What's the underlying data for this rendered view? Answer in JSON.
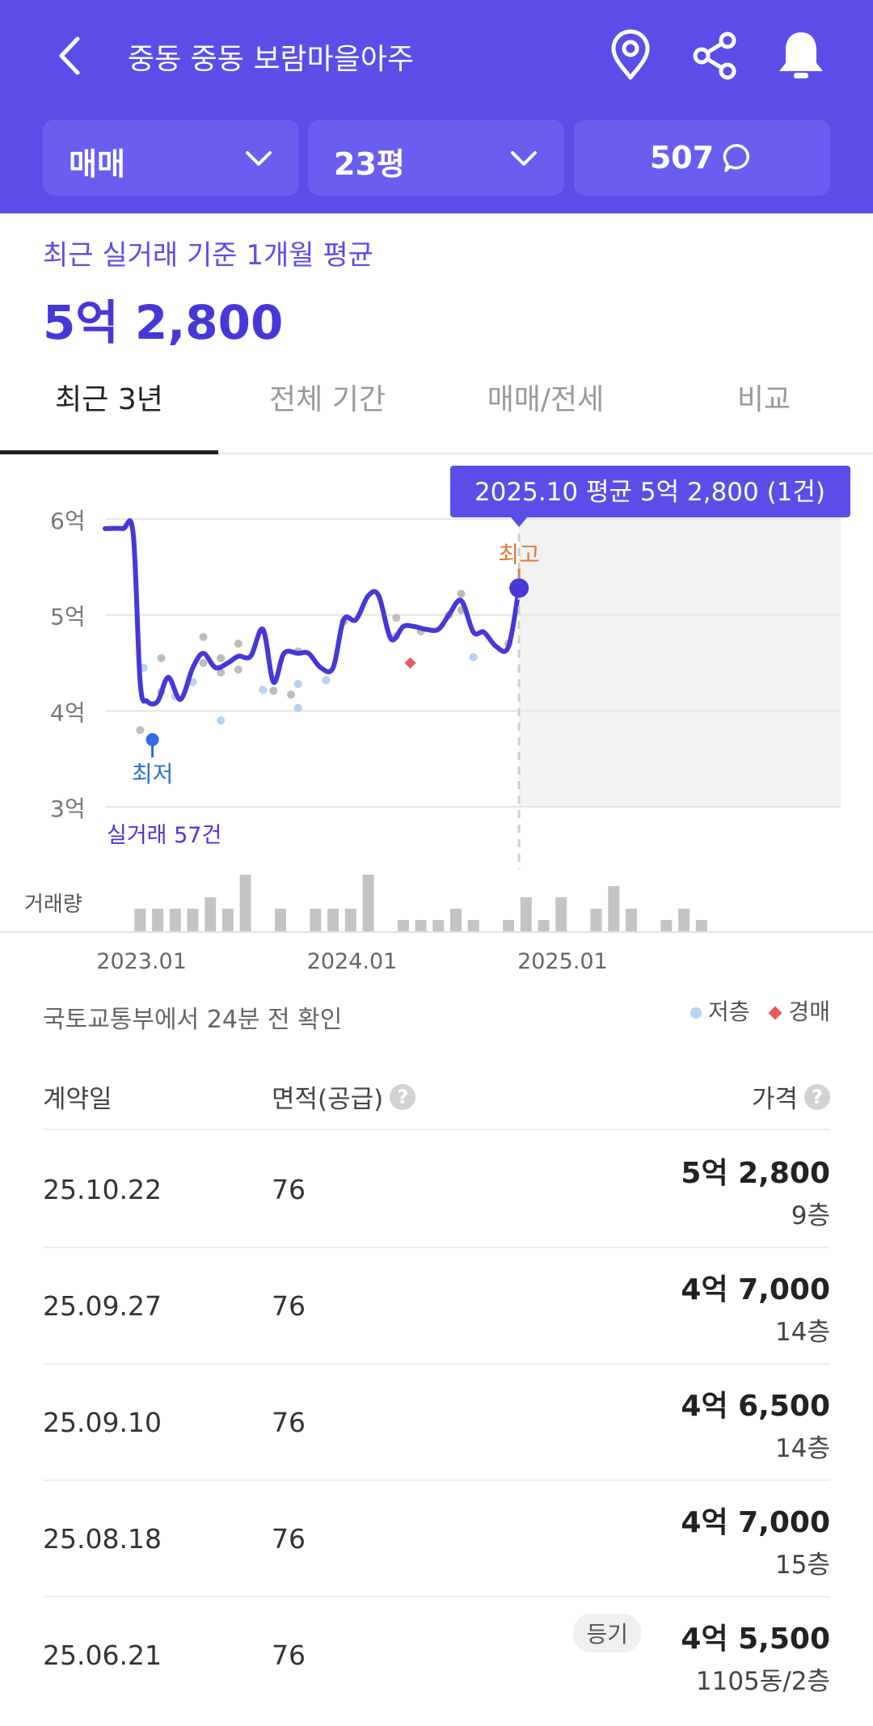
{
  "header": {
    "title": "중동 중동 보람마을아주",
    "back_icon": "chevron-left-icon",
    "icons": [
      "map-pin-icon",
      "share-icon",
      "bell-icon"
    ],
    "filters": {
      "type": "매매",
      "size": "23평",
      "count": "507"
    },
    "colors": {
      "header_bg": "#5b4ee8",
      "filter_bg": "#6a5ef0"
    }
  },
  "summary": {
    "subtitle": "최근 실거래 기준 1개월 평균",
    "price": "5억 2,800"
  },
  "tabs": [
    {
      "label": "최근 3년",
      "active": true
    },
    {
      "label": "전체 기간",
      "active": false
    },
    {
      "label": "매매/전세",
      "active": false
    },
    {
      "label": "비교",
      "active": false
    }
  ],
  "chart": {
    "tooltip": "2025.10 평균 5억 2,800 (1건)",
    "high_label": "최고",
    "low_label": "최저",
    "count_label": "실거래 57건",
    "volume_label": "거래량"
  },
  "chart_data": {
    "type": "line",
    "x_unit": "month",
    "xlim": [
      "2022.10",
      "2025.12"
    ],
    "ylim": [
      3,
      6
    ],
    "y_unit": "억",
    "y_ticks": [
      "3억",
      "4억",
      "5억",
      "6억"
    ],
    "x_ticks": [
      "2023.01",
      "2024.01",
      "2025.01"
    ],
    "grid": true,
    "series": [
      {
        "values": [
          [
            0,
            5.9
          ],
          [
            1,
            5.9
          ],
          [
            1.6,
            5.85
          ],
          [
            2,
            4.3
          ],
          [
            2.4,
            4.1
          ],
          [
            3,
            4.1
          ],
          [
            3.6,
            4.35
          ],
          [
            4.3,
            4.12
          ],
          [
            5,
            4.45
          ],
          [
            5.6,
            4.6
          ],
          [
            6.3,
            4.45
          ],
          [
            7,
            4.5
          ],
          [
            7.6,
            4.57
          ],
          [
            8.3,
            4.57
          ],
          [
            9,
            4.85
          ],
          [
            9.6,
            4.3
          ],
          [
            10.2,
            4.6
          ],
          [
            11,
            4.6
          ],
          [
            11.6,
            4.6
          ],
          [
            12.3,
            4.45
          ],
          [
            13,
            4.45
          ],
          [
            13.6,
            4.95
          ],
          [
            14.3,
            4.95
          ],
          [
            15,
            5.2
          ],
          [
            15.6,
            5.2
          ],
          [
            16.3,
            4.75
          ],
          [
            17,
            4.88
          ],
          [
            17.6,
            4.88
          ],
          [
            18.3,
            4.85
          ],
          [
            19,
            4.85
          ],
          [
            19.6,
            5.0
          ],
          [
            20.3,
            5.15
          ],
          [
            21,
            4.82
          ],
          [
            21.6,
            4.82
          ],
          [
            22.3,
            4.67
          ],
          [
            23,
            4.67
          ],
          [
            23.6,
            5.28
          ]
        ]
      }
    ],
    "trades": [
      [
        2,
        3.8
      ],
      [
        2.2,
        4.45
      ],
      [
        3.2,
        4.55
      ],
      [
        3.2,
        4.2
      ],
      [
        4,
        4.15
      ],
      [
        5,
        4.3
      ],
      [
        5.6,
        4.77
      ],
      [
        5.6,
        4.5
      ],
      [
        6.6,
        4.55
      ],
      [
        6.6,
        4.4
      ],
      [
        7.6,
        4.7
      ],
      [
        7.6,
        4.43
      ],
      [
        9,
        4.22
      ],
      [
        9.6,
        4.21
      ],
      [
        10.6,
        4.17
      ],
      [
        11,
        4.62
      ],
      [
        11,
        4.28
      ],
      [
        11,
        4.03
      ],
      [
        12.6,
        4.32
      ],
      [
        13.6,
        4.93
      ],
      [
        16.6,
        4.97
      ],
      [
        16.6,
        4.78
      ],
      [
        18,
        4.83
      ],
      [
        19.6,
        5.0
      ],
      [
        20.3,
        5.22
      ],
      [
        20.3,
        5.05
      ],
      [
        21,
        4.56
      ],
      [
        23,
        4.7
      ]
    ],
    "low_floor_trades": [
      [
        2.2,
        4.45
      ],
      [
        4,
        4.15
      ],
      [
        5,
        4.3
      ],
      [
        6.6,
        3.9
      ],
      [
        9,
        4.22
      ],
      [
        11,
        4.28
      ],
      [
        11,
        4.03
      ],
      [
        12.6,
        4.32
      ],
      [
        21,
        4.56
      ]
    ],
    "auction_trades": [
      [
        17.4,
        4.5
      ]
    ],
    "volume": [
      0,
      0,
      2,
      2,
      2,
      2,
      3,
      2,
      5,
      0,
      2,
      0,
      2,
      2,
      2,
      5,
      0,
      1,
      1,
      1,
      2,
      1,
      0,
      1,
      3,
      1,
      3,
      0,
      2,
      4,
      2,
      0,
      1,
      2,
      1
    ],
    "lowest_point": [
      2.7,
      3.7
    ],
    "highest_point": [
      23.6,
      5.28
    ],
    "highlight_range": [
      "2025.10",
      "2025.12"
    ],
    "colors": {
      "line": "#4638d8",
      "trade": "#bdbdbd",
      "low_floor": "#b8d4f0",
      "auction": "#e85a5a",
      "volume": "#c4c4c4"
    }
  },
  "source": "국토교통부에서 24분 전 확인",
  "legend": {
    "low_floor": "저층",
    "auction": "경매"
  },
  "table": {
    "headers": {
      "date": "계약일",
      "area": "면적(공급)",
      "price": "가격"
    },
    "help_icon": "?",
    "rows": [
      {
        "date": "25.10.22",
        "area": "76",
        "price": "5억 2,800",
        "floor": "9층",
        "badge": ""
      },
      {
        "date": "25.09.27",
        "area": "76",
        "price": "4억 7,000",
        "floor": "14층",
        "badge": ""
      },
      {
        "date": "25.09.10",
        "area": "76",
        "price": "4억 6,500",
        "floor": "14층",
        "badge": ""
      },
      {
        "date": "25.08.18",
        "area": "76",
        "price": "4억 7,000",
        "floor": "15층",
        "badge": ""
      },
      {
        "date": "25.06.21",
        "area": "76",
        "price": "4억 5,500",
        "floor": "1105동/2층",
        "badge": "등기"
      }
    ]
  }
}
